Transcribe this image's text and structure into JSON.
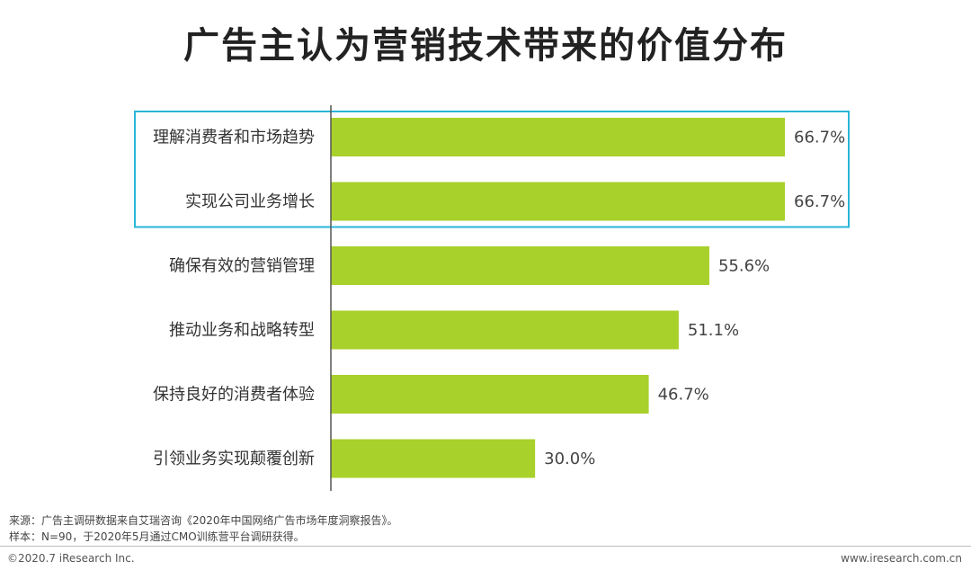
{
  "chart_data": {
    "type": "bar",
    "orientation": "horizontal",
    "title": "广告主认为营销技术带来的价值分布",
    "categories": [
      "理解消费者和市场趋势",
      "实现公司业务增长",
      "确保有效的营销管理",
      "推动业务和战略转型",
      "保持良好的消费者体验",
      "引领业务实现颠覆创新"
    ],
    "values": [
      66.7,
      66.7,
      55.6,
      51.1,
      46.7,
      30.0
    ],
    "value_labels": [
      "66.7%",
      "66.7%",
      "55.6%",
      "51.1%",
      "46.7%",
      "30.0%"
    ],
    "unit": "%",
    "xlim": [
      0,
      70
    ],
    "grid": false,
    "legend": "none",
    "highlighted_categories": [
      "理解消费者和市场趋势",
      "实现公司业务增长"
    ],
    "colors": {
      "bar": "#a9d12b",
      "highlight_box": "#29b6d8",
      "axis": "#555555"
    }
  },
  "footer": {
    "source": "来源：广告主调研数据来自艾瑞咨询《2020年中国网络广告市场年度洞察报告》。",
    "sample": "样本：N=90，于2020年5月通过CMO训练营平台调研获得。",
    "copyright": "©2020.7 iResearch Inc.",
    "website": "www.iresearch.com.cn"
  }
}
